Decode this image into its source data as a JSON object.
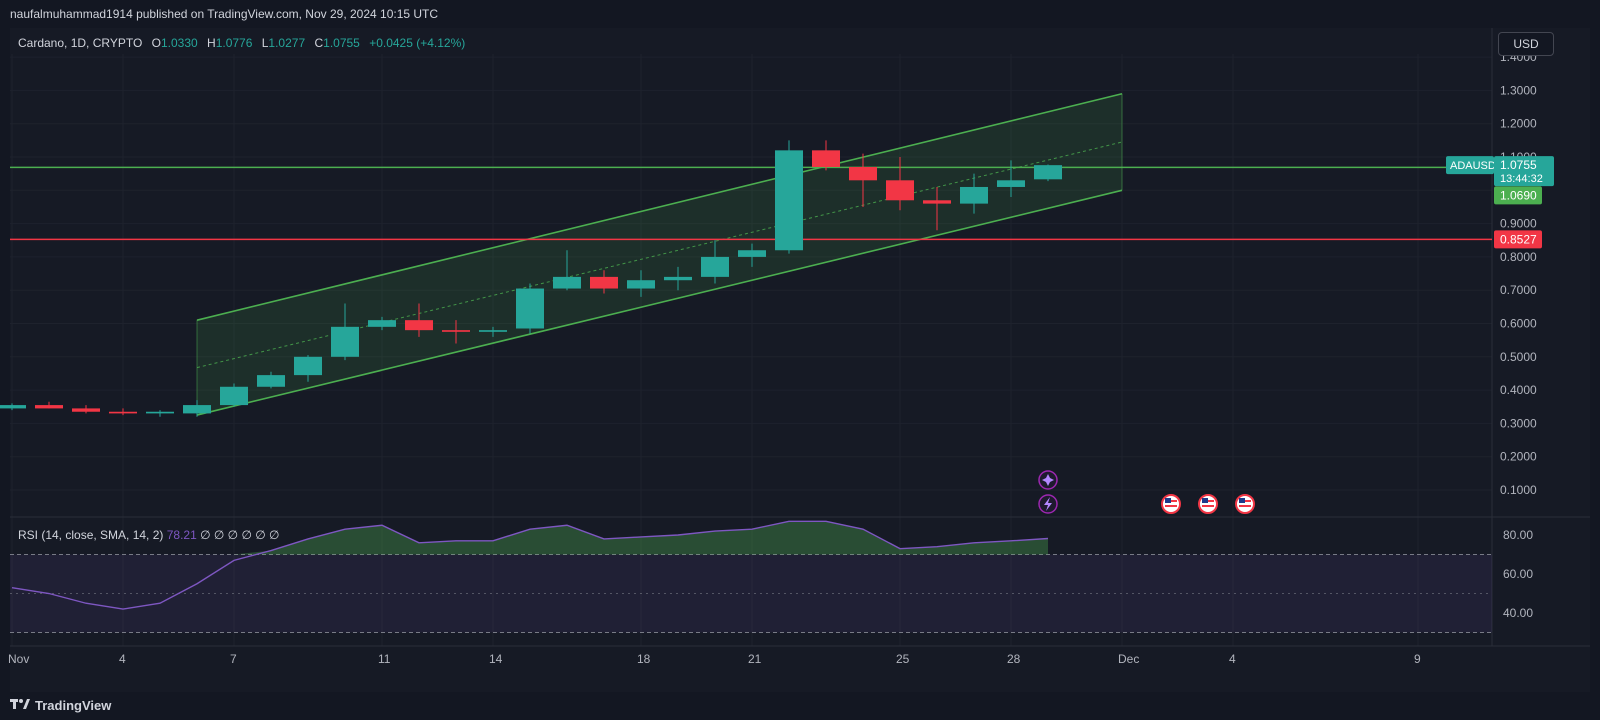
{
  "header": {
    "published_text": "naufalmuhammad1914 published on TradingView.com, Nov 29, 2024 10:15 UTC"
  },
  "legend": {
    "symbol": "Cardano, 1D, CRYPTO",
    "open_label": "O",
    "open": "1.0330",
    "high_label": "H",
    "high": "1.0776",
    "low_label": "L",
    "low": "1.0277",
    "close_label": "C",
    "close": "1.0755",
    "change": "+0.0425 (+4.12%)"
  },
  "currency_button": "USD",
  "price_axis": {
    "ticks": [
      "1.4000",
      "1.3000",
      "1.2000",
      "1.1000",
      "0.9000",
      "0.8000",
      "0.7000",
      "0.6000",
      "0.5000",
      "0.4000",
      "0.3000",
      "0.2000",
      "0.1000"
    ]
  },
  "price_tags": {
    "symbol_tag": "ADAUSD",
    "last_price": "1.0755",
    "countdown": "13:44:32",
    "resistance": "1.0690",
    "support": "0.8527"
  },
  "time_axis": {
    "labels": [
      "Nov",
      "4",
      "7",
      "11",
      "14",
      "18",
      "21",
      "25",
      "28",
      "Dec",
      "4",
      "9"
    ]
  },
  "rsi": {
    "label": "RSI (14, close, SMA, 14, 2)",
    "value": "78.21",
    "extras": "∅ ∅ ∅ ∅ ∅ ∅",
    "ticks": [
      "80.00",
      "60.00",
      "40.00"
    ]
  },
  "footer": {
    "logo_text": "TradingView"
  },
  "colors": {
    "up": "#26a69a",
    "down": "#f23645",
    "channel": "#4caf50",
    "support_line": "#f23645",
    "resistance_line": "#4caf50",
    "rsi": "#7e57c2"
  },
  "chart_data": {
    "type": "candlestick",
    "symbol": "ADAUSD",
    "timeframe": "1D",
    "dates": [
      "2024-11-01",
      "2024-11-02",
      "2024-11-03",
      "2024-11-04",
      "2024-11-05",
      "2024-11-06",
      "2024-11-07",
      "2024-11-08",
      "2024-11-09",
      "2024-11-10",
      "2024-11-11",
      "2024-11-12",
      "2024-11-13",
      "2024-11-14",
      "2024-11-15",
      "2024-11-16",
      "2024-11-17",
      "2024-11-18",
      "2024-11-19",
      "2024-11-20",
      "2024-11-21",
      "2024-11-22",
      "2024-11-23",
      "2024-11-24",
      "2024-11-25",
      "2024-11-26",
      "2024-11-27",
      "2024-11-28",
      "2024-11-29"
    ],
    "open": [
      0.345,
      0.355,
      0.345,
      0.335,
      0.33,
      0.33,
      0.355,
      0.41,
      0.445,
      0.5,
      0.59,
      0.61,
      0.58,
      0.575,
      0.585,
      0.705,
      0.74,
      0.705,
      0.73,
      0.74,
      0.8,
      0.82,
      1.12,
      1.07,
      1.03,
      0.97,
      0.96,
      1.01,
      1.033
    ],
    "high": [
      0.36,
      0.365,
      0.355,
      0.345,
      0.34,
      0.37,
      0.42,
      0.455,
      0.505,
      0.66,
      0.62,
      0.66,
      0.61,
      0.59,
      0.72,
      0.82,
      0.76,
      0.76,
      0.77,
      0.85,
      0.84,
      1.15,
      1.15,
      1.11,
      1.1,
      1.01,
      1.05,
      1.09,
      1.0776
    ],
    "low": [
      0.34,
      0.345,
      0.33,
      0.325,
      0.32,
      0.32,
      0.35,
      0.405,
      0.425,
      0.49,
      0.58,
      0.56,
      0.54,
      0.56,
      0.57,
      0.7,
      0.69,
      0.68,
      0.7,
      0.72,
      0.77,
      0.81,
      1.06,
      0.95,
      0.94,
      0.88,
      0.93,
      0.98,
      1.0277
    ],
    "close": [
      0.355,
      0.345,
      0.335,
      0.33,
      0.335,
      0.355,
      0.41,
      0.445,
      0.5,
      0.59,
      0.61,
      0.58,
      0.575,
      0.58,
      0.705,
      0.74,
      0.705,
      0.73,
      0.74,
      0.8,
      0.82,
      1.12,
      1.07,
      1.03,
      0.97,
      0.96,
      1.01,
      1.03,
      1.0755
    ],
    "horizontal_levels": [
      1.069,
      0.8527
    ],
    "channel": {
      "start_date": "2024-11-06",
      "end_date": "2024-12-01",
      "upper": [
        0.61,
        1.29
      ],
      "lower": [
        0.325,
        1.0
      ],
      "mid": [
        0.4675,
        1.145
      ]
    },
    "rsi_values": [
      53,
      50,
      45,
      42,
      45,
      55,
      67,
      72,
      78,
      83,
      85,
      76,
      77,
      77,
      83,
      85,
      78,
      79,
      80,
      82,
      83,
      87,
      87,
      83,
      73,
      74,
      76,
      77,
      78.21
    ],
    "rsi_bands": [
      70,
      50,
      30
    ]
  }
}
